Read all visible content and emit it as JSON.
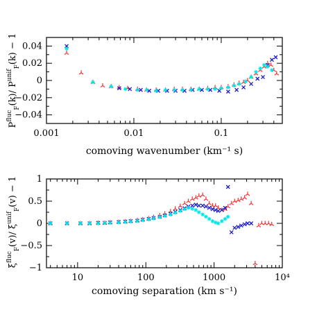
{
  "chart_data": [
    {
      "type": "scatter",
      "xscale": "log",
      "xlim": [
        0.001,
        0.5
      ],
      "ylim": [
        -0.05,
        0.05
      ],
      "xticks": [
        0.001,
        0.01,
        0.1
      ],
      "xtick_labels": [
        "0.001",
        "0.01",
        "0.1"
      ],
      "yticks": [
        -0.04,
        -0.02,
        0,
        0.02,
        0.04
      ],
      "ytick_labels": [
        "−0.04",
        "−0.02",
        "0",
        "0.02",
        "0.04"
      ],
      "xlabel": "comoving wavenumber (km⁻¹ s)",
      "ylabel": {
        "before": "P",
        "sub1": "F",
        "sup1": "fluc",
        "mid": "(k)/ P",
        "sub2": "F",
        "sup2": "unif",
        "after": "(k)  −  1"
      },
      "series": [
        {
          "marker": "tri",
          "color": "#ff2a2a",
          "x": [
            0.0017,
            0.0025,
            0.0034,
            0.0044,
            0.0055,
            0.0068,
            0.0085,
            0.011,
            0.014,
            0.018,
            0.023,
            0.029,
            0.036,
            0.045,
            0.056,
            0.07,
            0.085,
            0.1,
            0.12,
            0.14,
            0.16,
            0.18,
            0.2,
            0.22,
            0.25,
            0.28,
            0.31,
            0.34,
            0.37,
            0.4,
            0.43
          ],
          "y": [
            0.032,
            0.009,
            -0.002,
            -0.006,
            -0.007,
            -0.008,
            -0.009,
            -0.01,
            -0.011,
            -0.011,
            -0.011,
            -0.01,
            -0.01,
            -0.01,
            -0.01,
            -0.009,
            -0.008,
            -0.008,
            -0.007,
            -0.005,
            -0.003,
            -0.002,
            0.0,
            0.004,
            0.008,
            0.012,
            0.016,
            0.02,
            0.018,
            0.012,
            0.008
          ]
        },
        {
          "marker": "x",
          "color": "#1a1acc",
          "x": [
            0.0017,
            0.0068,
            0.009,
            0.012,
            0.015,
            0.019,
            0.024,
            0.03,
            0.038,
            0.047,
            0.06,
            0.075,
            0.095,
            0.12,
            0.15,
            0.18,
            0.22,
            0.26,
            0.3,
            0.34,
            0.38,
            0.42
          ],
          "y": [
            0.04,
            -0.009,
            -0.01,
            -0.011,
            -0.012,
            -0.012,
            -0.012,
            -0.012,
            -0.012,
            -0.011,
            -0.011,
            -0.011,
            -0.012,
            -0.013,
            -0.011,
            -0.008,
            -0.004,
            0.002,
            0.004,
            0.018,
            0.024,
            0.027
          ]
        },
        {
          "marker": "star",
          "color": "#00e5e5",
          "x": [
            0.0017,
            0.0034,
            0.0055,
            0.008,
            0.011,
            0.014,
            0.018,
            0.023,
            0.029,
            0.036,
            0.045,
            0.056,
            0.07,
            0.085,
            0.1,
            0.12,
            0.14,
            0.16,
            0.19,
            0.22,
            0.25,
            0.28,
            0.31,
            0.34,
            0.38
          ],
          "y": [
            0.037,
            -0.002,
            -0.007,
            -0.01,
            -0.011,
            -0.011,
            -0.012,
            -0.011,
            -0.011,
            -0.011,
            -0.011,
            -0.01,
            -0.01,
            -0.01,
            -0.009,
            -0.008,
            -0.006,
            -0.004,
            -0.001,
            0.004,
            0.01,
            0.014,
            0.018,
            0.016,
            0.012
          ]
        }
      ]
    },
    {
      "type": "scatter",
      "xscale": "log",
      "xlim": [
        3.5,
        10000
      ],
      "ylim": [
        -1,
        1
      ],
      "xticks": [
        10,
        100,
        1000,
        10000
      ],
      "xtick_labels": [
        "10",
        "100",
        "1000",
        "10⁴"
      ],
      "yticks": [
        -1,
        -0.5,
        0,
        0.5,
        1
      ],
      "ytick_labels": [
        "−1",
        "−0.5",
        "0",
        "0.5",
        "1"
      ],
      "xlabel": "comoving separation (km s⁻¹)",
      "ylabel": {
        "before": "ξ",
        "sub1": "F",
        "sup1": "fluc",
        "mid": "(v)/ ξ",
        "sub2": "F",
        "sup2": "unif",
        "after": "(v)  −  1"
      },
      "series": [
        {
          "marker": "tri",
          "color": "#ff2a2a",
          "x": [
            4,
            7,
            11,
            15,
            20,
            25,
            30,
            40,
            50,
            60,
            75,
            90,
            110,
            130,
            160,
            190,
            230,
            270,
            320,
            370,
            420,
            480,
            540,
            600,
            680,
            760,
            850,
            950,
            1050,
            1150,
            1300,
            1450,
            1600,
            1800,
            2000,
            2250,
            2500,
            2800,
            3100,
            3500,
            4000,
            4500,
            5000,
            5600,
            6300,
            7000
          ],
          "y": [
            0.0,
            0.0,
            0.0,
            0.0,
            0.01,
            0.01,
            0.02,
            0.03,
            0.04,
            0.05,
            0.07,
            0.09,
            0.11,
            0.14,
            0.18,
            0.22,
            0.27,
            0.33,
            0.39,
            0.45,
            0.5,
            0.55,
            0.58,
            0.62,
            0.64,
            0.55,
            0.45,
            0.4,
            0.4,
            0.35,
            0.3,
            0.32,
            0.38,
            0.45,
            0.5,
            0.52,
            0.55,
            0.58,
            0.66,
            0.45,
            -0.9,
            -0.05,
            0.0,
            0.0,
            0.0,
            -0.02
          ]
        },
        {
          "marker": "x",
          "color": "#1a1acc",
          "x": [
            4,
            7,
            11,
            15,
            20,
            25,
            30,
            40,
            50,
            60,
            75,
            90,
            110,
            130,
            160,
            190,
            230,
            270,
            320,
            370,
            420,
            480,
            540,
            600,
            680,
            760,
            850,
            950,
            1050,
            1150,
            1300,
            1450,
            1600,
            1800,
            2000,
            2250,
            2500,
            2800,
            3100,
            3500
          ],
          "y": [
            0.0,
            0.0,
            0.0,
            0.0,
            0.01,
            0.01,
            0.02,
            0.03,
            0.04,
            0.05,
            0.06,
            0.08,
            0.1,
            0.12,
            0.15,
            0.18,
            0.22,
            0.26,
            0.3,
            0.34,
            0.38,
            0.4,
            0.42,
            0.4,
            0.4,
            0.38,
            0.35,
            0.32,
            0.3,
            0.28,
            0.3,
            0.35,
            0.82,
            -0.2,
            -0.1,
            -0.08,
            -0.05,
            -0.02,
            0.0,
            0.0
          ]
        },
        {
          "marker": "star",
          "color": "#00e5e5",
          "x": [
            4,
            7,
            11,
            15,
            20,
            25,
            30,
            40,
            50,
            60,
            75,
            90,
            110,
            130,
            160,
            190,
            230,
            270,
            320,
            370,
            420,
            480,
            540,
            600,
            680,
            760,
            850,
            950,
            1050,
            1150,
            1300,
            1450,
            1600
          ],
          "y": [
            0.0,
            0.0,
            0.0,
            0.0,
            0.0,
            0.01,
            0.01,
            0.02,
            0.03,
            0.04,
            0.05,
            0.07,
            0.09,
            0.11,
            0.14,
            0.17,
            0.2,
            0.24,
            0.28,
            0.32,
            0.35,
            0.33,
            0.3,
            0.25,
            0.2,
            0.15,
            0.1,
            0.05,
            0.02,
            0.0,
            0.05,
            0.1,
            0.15
          ]
        }
      ]
    }
  ]
}
